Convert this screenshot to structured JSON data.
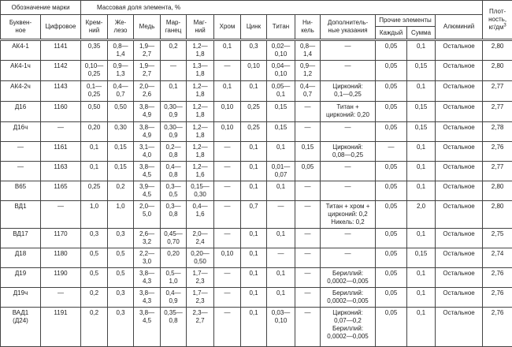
{
  "header": {
    "designation": "Обозначение марки",
    "letter": "Буквен-\nное",
    "digital": "Цифровое",
    "mass_fraction": "Массовая доля элемента, %",
    "silicon": "Крем-\nний",
    "iron": "Же-\nлезо",
    "copper": "Медь",
    "manganese": "Мар-\nганец",
    "magnesium": "Маг-\nний",
    "chromium": "Хром",
    "zinc": "Цинк",
    "titanium": "Титан",
    "nickel": "Ни-\nкель",
    "additional": "Дополнитель-\nные указания",
    "other": "Прочие элементы",
    "each": "Каждый",
    "sum": "Сумма",
    "aluminium": "Алюминий",
    "density": "Плот-\nность,\nкг/дм",
    "density_sup": "3"
  },
  "rows": [
    [
      "АК4-1",
      "1141",
      "0,35",
      "0,8—\n1,4",
      "1,9—\n2,7",
      "0,2",
      "1,2—\n1,8",
      "0,1",
      "0,3",
      "0,02—\n0,10",
      "0,8—\n1,4",
      "—",
      "0,05",
      "0,1",
      "Остальное",
      "2,80"
    ],
    [
      "АК4-1ч",
      "1142",
      "0,10—\n0,25",
      "0,9—\n1,3",
      "1,9—\n2,7",
      "—",
      "1,3—\n1,8",
      "—",
      "0,10",
      "0,04—\n0,10",
      "0,9—\n1,2",
      "—",
      "0,05",
      "0,15",
      "Остальное",
      "2,80"
    ],
    [
      "АК4-2ч",
      "1143",
      "0,1—\n0,25",
      "0,4—\n0,7",
      "2,0—\n2,6",
      "0,1",
      "1,2—\n1,8",
      "0,1",
      "0,1",
      "0,05—\n0,1",
      "0,4—\n0,7",
      "Цирконий:\n0,1—0,25",
      "0,05",
      "0,1",
      "Остальное",
      "2,77"
    ],
    [
      "Д16",
      "1160",
      "0,50",
      "0,50",
      "3,8—\n4,9",
      "0,30—\n0,9",
      "1,2—\n1,8",
      "0,10",
      "0,25",
      "0,15",
      "—",
      "Титан +\nцирконий: 0,20",
      "0,05",
      "0,15",
      "Остальное",
      "2,77"
    ],
    [
      "Д16ч",
      "—",
      "0,20",
      "0,30",
      "3,8—\n4,9",
      "0,30—\n0,9",
      "1,2—\n1,8",
      "0,10",
      "0,25",
      "0,15",
      "—",
      "—",
      "0,05",
      "0,15",
      "Остальное",
      "2,78"
    ],
    [
      "—",
      "1161",
      "0,1",
      "0,15",
      "3,1—\n4,0",
      "0,2—\n0,8",
      "1,2—\n1,8",
      "—",
      "0,1",
      "0,1",
      "0,15",
      "Цирконий:\n0,08—0,25",
      "—",
      "0,1",
      "Остальное",
      "2,76"
    ],
    [
      "—",
      "1163",
      "0,1",
      "0,15",
      "3,8—\n4,5",
      "0,4—\n0,8",
      "1,2—\n1,6",
      "—",
      "0,1",
      "0,01—\n0,07",
      "0,05",
      "—",
      "0,05",
      "0,1",
      "Остальное",
      "2,77"
    ],
    [
      "В65",
      "1165",
      "0,25",
      "0,2",
      "3,9—\n4,5",
      "0,3—\n0,5",
      "0,15—\n0,30",
      "—",
      "0,1",
      "0,1",
      "—",
      "—",
      "0,05",
      "0,1",
      "Остальное",
      "2,80"
    ],
    [
      "ВД1",
      "—",
      "1,0",
      "1,0",
      "2,0—\n5,0",
      "0,3—\n0,8",
      "0,4—\n1,6",
      "—",
      "0,7",
      "—",
      "—",
      "Титан + хром +\nцирконий: 0,2\nНикель: 0,2",
      "0,05",
      "2,0",
      "Остальное",
      "2,80"
    ],
    [
      "ВД17",
      "1170",
      "0,3",
      "0,3",
      "2,6—\n3,2",
      "0,45—\n0,70",
      "2,0—\n2,4",
      "—",
      "0,1",
      "0,1",
      "—",
      "—",
      "0,05",
      "0,1",
      "Остальное",
      "2,75"
    ],
    [
      "Д18",
      "1180",
      "0,5",
      "0,5",
      "2,2—\n3,0",
      "0,20",
      "0,20—\n0,50",
      "0,10",
      "0,1",
      "—",
      "—",
      "—",
      "0,05",
      "0,15",
      "Остальное",
      "2,74"
    ],
    [
      "Д19",
      "1190",
      "0,5",
      "0,5",
      "3,8—\n4,3",
      "0,5—\n1,0",
      "1,7—\n2,3",
      "—",
      "0,1",
      "0,1",
      "—",
      "Бериллий:\n0,0002—0,005",
      "0,05",
      "0,1",
      "Остальное",
      "2,76"
    ],
    [
      "Д19ч",
      "—",
      "0,2",
      "0,3",
      "3,8—\n4,3",
      "0,4—\n0,9",
      "1,7—\n2,3",
      "—",
      "0,1",
      "0,1",
      "—",
      "Бериллий:\n0,0002—0,005",
      "0,05",
      "0,1",
      "Остальное",
      "2,76"
    ],
    [
      "ВАД1\n(Д24)",
      "1191",
      "0,2",
      "0,3",
      "3,8—\n4,5",
      "0,35—\n0,8",
      "2,3—\n2,7",
      "—",
      "0,1",
      "0,03—\n0,10",
      "—",
      "Цирконий:\n0,07—0,2\nБериллий:\n0,0002—0,005",
      "0,05",
      "0,1",
      "Остальное",
      "2,76"
    ]
  ]
}
